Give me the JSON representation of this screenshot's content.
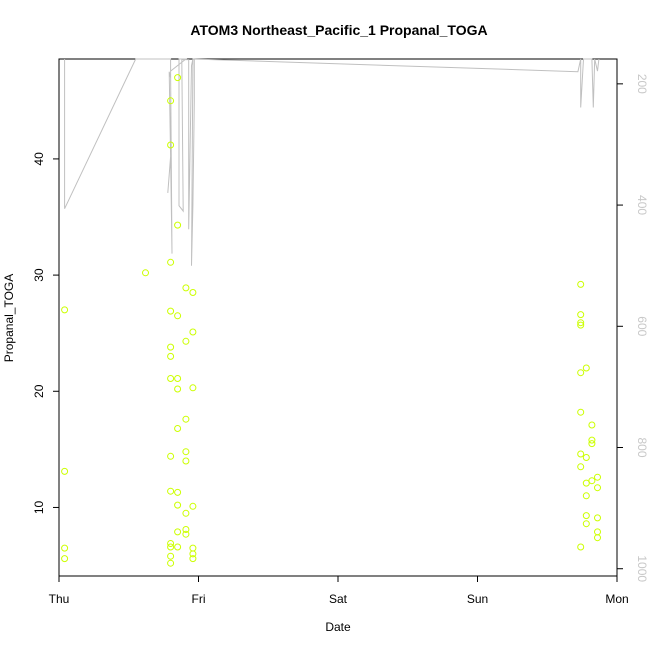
{
  "chart_data": {
    "type": "scatter",
    "title": "ATOM3 Northeast_Pacific_1 Propanal_TOGA",
    "xlabel": "Date",
    "ylabel": "Propanal_TOGA",
    "x_ticks": [
      "Thu",
      "Fri",
      "Sat",
      "Sun",
      "Mon"
    ],
    "xlim": [
      0,
      4.0
    ],
    "ylim": [
      4.1,
      48.6
    ],
    "y_ticks": [
      10,
      20,
      30,
      40
    ],
    "y2_ticks": [
      200,
      400,
      600,
      800,
      1000
    ],
    "y2lim": [
      1012,
      159
    ],
    "grid": false,
    "legend": "none",
    "colors": {
      "points": "#ccff00",
      "pressure_line": "#c0c0c0",
      "right_axis_text": "#c8c8c8",
      "axis": "#000000"
    },
    "series": [
      {
        "type": "scatter",
        "x_unit": "days since Thu",
        "points": [
          [
            0.04,
            27.0
          ],
          [
            0.04,
            13.1
          ],
          [
            0.04,
            6.5
          ],
          [
            0.04,
            5.6
          ],
          [
            0.62,
            30.2
          ],
          [
            0.8,
            45.0
          ],
          [
            0.8,
            41.2
          ],
          [
            0.8,
            31.1
          ],
          [
            0.8,
            26.9
          ],
          [
            0.8,
            23.8
          ],
          [
            0.8,
            23.0
          ],
          [
            0.8,
            21.1
          ],
          [
            0.8,
            14.4
          ],
          [
            0.8,
            11.4
          ],
          [
            0.8,
            6.9
          ],
          [
            0.8,
            6.6
          ],
          [
            0.8,
            5.8
          ],
          [
            0.8,
            5.2
          ],
          [
            0.85,
            47.0
          ],
          [
            0.85,
            34.3
          ],
          [
            0.85,
            26.5
          ],
          [
            0.85,
            21.1
          ],
          [
            0.85,
            20.2
          ],
          [
            0.85,
            16.8
          ],
          [
            0.85,
            11.3
          ],
          [
            0.85,
            10.2
          ],
          [
            0.85,
            7.9
          ],
          [
            0.85,
            6.6
          ],
          [
            0.91,
            28.9
          ],
          [
            0.91,
            24.3
          ],
          [
            0.91,
            17.6
          ],
          [
            0.91,
            14.8
          ],
          [
            0.91,
            14.0
          ],
          [
            0.91,
            9.5
          ],
          [
            0.91,
            8.1
          ],
          [
            0.91,
            7.7
          ],
          [
            0.96,
            28.5
          ],
          [
            0.96,
            25.1
          ],
          [
            0.96,
            20.3
          ],
          [
            0.96,
            10.1
          ],
          [
            0.96,
            6.5
          ],
          [
            0.96,
            6.0
          ],
          [
            0.96,
            5.6
          ],
          [
            3.74,
            29.2
          ],
          [
            3.74,
            26.6
          ],
          [
            3.74,
            25.9
          ],
          [
            3.74,
            25.7
          ],
          [
            3.74,
            21.6
          ],
          [
            3.74,
            18.2
          ],
          [
            3.74,
            14.6
          ],
          [
            3.74,
            13.5
          ],
          [
            3.74,
            6.6
          ],
          [
            3.78,
            22.0
          ],
          [
            3.78,
            14.3
          ],
          [
            3.78,
            12.1
          ],
          [
            3.78,
            11.0
          ],
          [
            3.78,
            9.3
          ],
          [
            3.78,
            8.6
          ],
          [
            3.82,
            17.1
          ],
          [
            3.82,
            15.8
          ],
          [
            3.82,
            15.5
          ],
          [
            3.82,
            12.3
          ],
          [
            3.86,
            12.6
          ],
          [
            3.86,
            11.7
          ],
          [
            3.86,
            9.1
          ],
          [
            3.86,
            7.9
          ],
          [
            3.86,
            7.4
          ]
        ]
      },
      {
        "type": "line",
        "name": "pressure",
        "axis": "right",
        "x_unit": "days since Thu",
        "points": [
          [
            0.04,
            159
          ],
          [
            0.04,
            406
          ],
          [
            0.55,
            159
          ],
          [
            0.8,
            159
          ],
          [
            0.8,
            166
          ],
          [
            0.8,
            155
          ],
          [
            0.8,
            190
          ],
          [
            0.79,
            180
          ],
          [
            0.8,
            320
          ],
          [
            0.79,
            350
          ],
          [
            0.78,
            380
          ],
          [
            0.8,
            320
          ],
          [
            0.81,
            480
          ],
          [
            0.8,
            179
          ],
          [
            0.91,
            159
          ],
          [
            0.86,
            159
          ],
          [
            0.86,
            401
          ],
          [
            0.89,
            410
          ],
          [
            0.88,
            160
          ],
          [
            0.93,
            160
          ],
          [
            0.93,
            440
          ],
          [
            0.95,
            170
          ],
          [
            0.96,
            159
          ],
          [
            0.97,
            160
          ],
          [
            0.97,
            230
          ],
          [
            0.96,
            400
          ],
          [
            0.95,
            500
          ],
          [
            0.96,
            159
          ],
          [
            3.72,
            180
          ],
          [
            3.74,
            159
          ],
          [
            3.74,
            239
          ],
          [
            3.76,
            159
          ],
          [
            3.82,
            159
          ],
          [
            3.83,
            239
          ],
          [
            3.84,
            159
          ],
          [
            3.86,
            179
          ],
          [
            3.87,
            159
          ]
        ]
      }
    ]
  }
}
